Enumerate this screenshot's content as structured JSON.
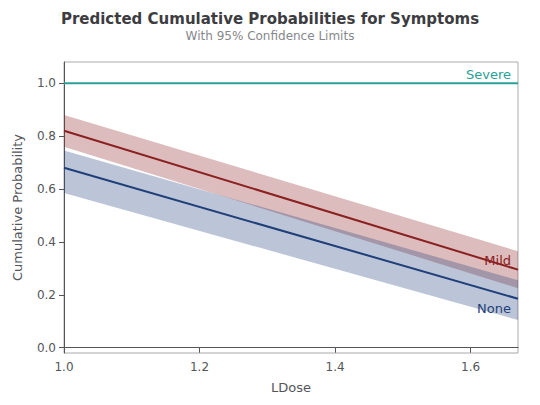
{
  "chart_data": {
    "type": "line",
    "title": "Predicted Cumulative Probabilities for Symptoms",
    "subtitle": "With 95% Confidence Limits",
    "xlabel": "LDose",
    "ylabel": "Cumulative Probability",
    "x": [
      1.0,
      1.67
    ],
    "xlim": [
      1.0,
      1.67
    ],
    "ylim": [
      -0.02,
      1.08
    ],
    "xticks": [
      {
        "value": 1.0,
        "label": "1.0"
      },
      1.2,
      1.4,
      1.6
    ],
    "yticks": [
      {
        "value": 0.0,
        "label": "0.0"
      },
      0.2,
      0.4,
      0.6,
      0.8,
      {
        "value": 1.0,
        "label": "1.0"
      }
    ],
    "grid": false,
    "series": [
      {
        "name": "Severe",
        "color": "#2aa198",
        "values": [
          1.0,
          1.0
        ]
      },
      {
        "name": "Mild",
        "color": "#8b2020",
        "values": [
          0.82,
          0.295
        ],
        "lower": [
          0.76,
          0.225
        ],
        "upper": [
          0.88,
          0.365
        ]
      },
      {
        "name": "None",
        "color": "#1f3f7a",
        "values": [
          0.68,
          0.185
        ],
        "lower": [
          0.585,
          0.105
        ],
        "upper": [
          0.745,
          0.255
        ]
      }
    ]
  }
}
